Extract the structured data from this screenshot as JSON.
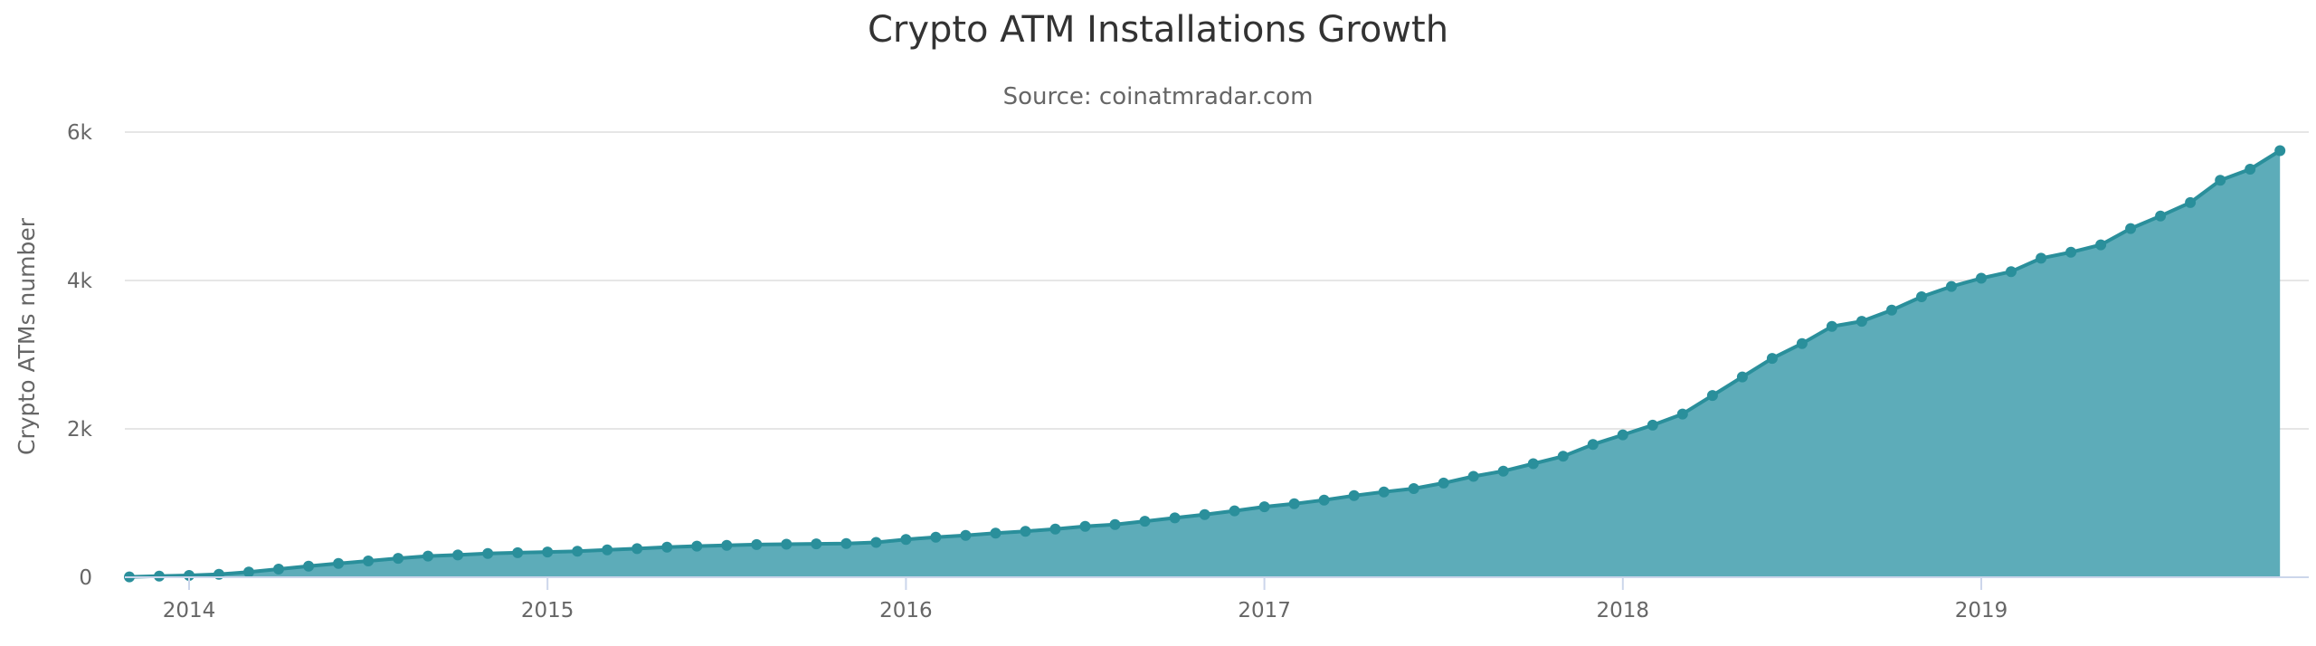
{
  "chart_data": {
    "type": "area",
    "title": "Crypto ATM Installations Growth",
    "subtitle": "Source: coinatmradar.com",
    "ylabel": "Crypto ATMs number",
    "xlabel": "",
    "ylim": [
      0,
      6000
    ],
    "y_ticks": [
      {
        "value": 0,
        "label": "0"
      },
      {
        "value": 2000,
        "label": "2k"
      },
      {
        "value": 4000,
        "label": "4k"
      },
      {
        "value": 6000,
        "label": "6k"
      }
    ],
    "x_ticks": [
      "2014",
      "2015",
      "2016",
      "2017",
      "2018",
      "2019"
    ],
    "x_start": "2013-11",
    "x_end": "2019-11",
    "grid": true,
    "legend": "none",
    "color": "#2a8f9b",
    "fill_color": "#5aaab8",
    "series": [
      {
        "x": [
          "2013-11",
          "2013-12",
          "2014-01",
          "2014-02",
          "2014-03",
          "2014-04",
          "2014-05",
          "2014-06",
          "2014-07",
          "2014-08",
          "2014-09",
          "2014-10",
          "2014-11",
          "2014-12",
          "2015-01",
          "2015-02",
          "2015-03",
          "2015-04",
          "2015-05",
          "2015-06",
          "2015-07",
          "2015-08",
          "2015-09",
          "2015-10",
          "2015-11",
          "2015-12",
          "2016-01",
          "2016-02",
          "2016-03",
          "2016-04",
          "2016-05",
          "2016-06",
          "2016-07",
          "2016-08",
          "2016-09",
          "2016-10",
          "2016-11",
          "2016-12",
          "2017-01",
          "2017-02",
          "2017-03",
          "2017-04",
          "2017-05",
          "2017-06",
          "2017-07",
          "2017-08",
          "2017-09",
          "2017-10",
          "2017-11",
          "2017-12",
          "2018-01",
          "2018-02",
          "2018-03",
          "2018-04",
          "2018-05",
          "2018-06",
          "2018-07",
          "2018-08",
          "2018-09",
          "2018-10",
          "2018-11",
          "2018-12",
          "2019-01",
          "2019-02",
          "2019-03",
          "2019-04",
          "2019-05",
          "2019-06",
          "2019-07",
          "2019-08",
          "2019-09",
          "2019-10",
          "2019-11"
        ],
        "y": [
          5,
          15,
          25,
          40,
          70,
          110,
          150,
          185,
          220,
          255,
          285,
          300,
          320,
          330,
          340,
          350,
          370,
          385,
          405,
          420,
          430,
          440,
          445,
          450,
          455,
          470,
          510,
          540,
          565,
          595,
          620,
          650,
          685,
          710,
          755,
          800,
          845,
          895,
          950,
          990,
          1040,
          1100,
          1150,
          1195,
          1270,
          1360,
          1430,
          1530,
          1630,
          1790,
          1920,
          2050,
          2200,
          2450,
          2700,
          2950,
          3150,
          3380,
          3450,
          3600,
          3780,
          3920,
          4030,
          4120,
          4300,
          4380,
          4480,
          4700,
          4870,
          5050,
          5350,
          5500,
          5750
        ]
      }
    ]
  }
}
